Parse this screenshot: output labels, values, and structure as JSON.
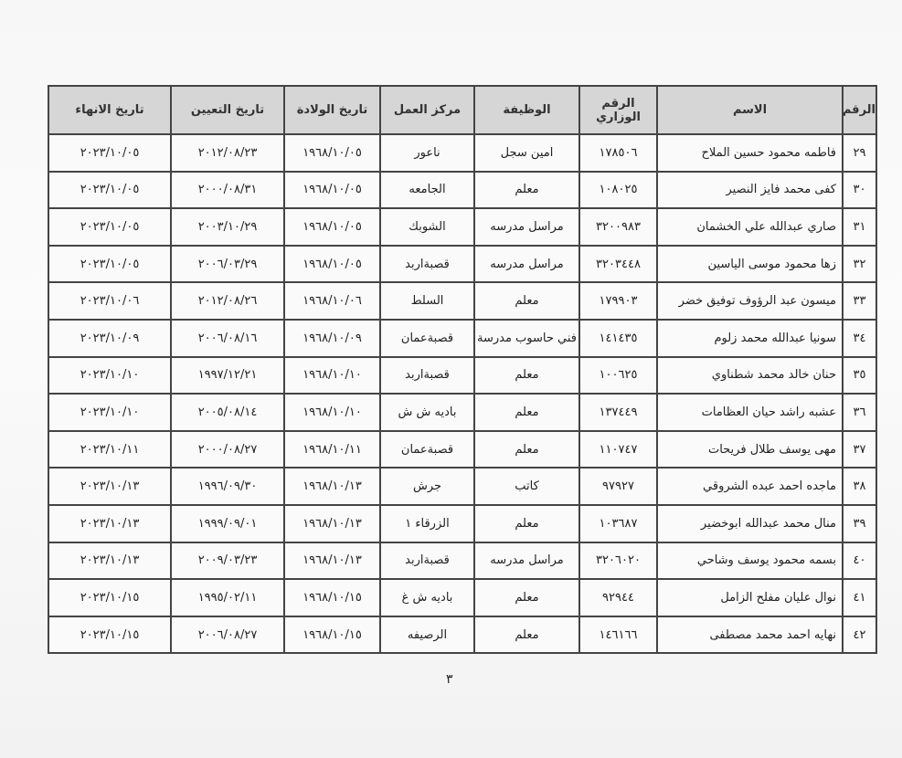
{
  "headers": {
    "num": "الرقم",
    "name": "الاسم",
    "ministry_no": "الرقم الوزاري",
    "job": "الوظيفة",
    "work_center": "مركز العمل",
    "birth_date": "تاريخ الولادة",
    "appointment_date": "تاريخ التعيين",
    "end_date": "تاريخ الانهاء"
  },
  "rows": [
    {
      "num": "٢٩",
      "name": "فاطمه محمود حسين الملاح",
      "ministry_no": "١٧٨٥٠٦",
      "job": "امين سجل",
      "work_center": "ناعور",
      "birth_date": "١٩٦٨/١٠/٠٥",
      "appointment_date": "٢٠١٢/٠٨/٢٣",
      "end_date": "٢٠٢٣/١٠/٠٥"
    },
    {
      "num": "٣٠",
      "name": "كفى محمد فايز النصير",
      "ministry_no": "١٠٨٠٢٥",
      "job": "معلم",
      "work_center": "الجامعه",
      "birth_date": "١٩٦٨/١٠/٠٥",
      "appointment_date": "٢٠٠٠/٠٨/٣١",
      "end_date": "٢٠٢٣/١٠/٠٥"
    },
    {
      "num": "٣١",
      "name": "صاري عبدالله علي الخشمان",
      "ministry_no": "٣٢٠٠٩٨٣",
      "job": "مراسل مدرسه",
      "work_center": "الشوبك",
      "birth_date": "١٩٦٨/١٠/٠٥",
      "appointment_date": "٢٠٠٣/١٠/٢٩",
      "end_date": "٢٠٢٣/١٠/٠٥"
    },
    {
      "num": "٣٢",
      "name": "زها محمود موسى الياسين",
      "ministry_no": "٣٢٠٣٤٤٨",
      "job": "مراسل مدرسه",
      "work_center": "قصبةاربد",
      "birth_date": "١٩٦٨/١٠/٠٥",
      "appointment_date": "٢٠٠٦/٠٣/٢٩",
      "end_date": "٢٠٢٣/١٠/٠٥"
    },
    {
      "num": "٣٣",
      "name": "ميسون عبد الرؤوف توفيق خضر",
      "ministry_no": "١٧٩٩٠٣",
      "job": "معلم",
      "work_center": "السلط",
      "birth_date": "١٩٦٨/١٠/٠٦",
      "appointment_date": "٢٠١٢/٠٨/٢٦",
      "end_date": "٢٠٢٣/١٠/٠٦"
    },
    {
      "num": "٣٤",
      "name": "سونيا عبدالله محمد زلوم",
      "ministry_no": "١٤١٤٣٥",
      "job": "فني حاسوب مدرسة",
      "work_center": "قصبةعمان",
      "birth_date": "١٩٦٨/١٠/٠٩",
      "appointment_date": "٢٠٠٦/٠٨/١٦",
      "end_date": "٢٠٢٣/١٠/٠٩"
    },
    {
      "num": "٣٥",
      "name": "حنان خالد محمد شطناوي",
      "ministry_no": "١٠٠٦٢٥",
      "job": "معلم",
      "work_center": "قصبةاربد",
      "birth_date": "١٩٦٨/١٠/١٠",
      "appointment_date": "١٩٩٧/١٢/٢١",
      "end_date": "٢٠٢٣/١٠/١٠"
    },
    {
      "num": "٣٦",
      "name": "عشبه راشد حيان العظامات",
      "ministry_no": "١٣٧٤٤٩",
      "job": "معلم",
      "work_center": "باديه ش ش",
      "birth_date": "١٩٦٨/١٠/١٠",
      "appointment_date": "٢٠٠٥/٠٨/١٤",
      "end_date": "٢٠٢٣/١٠/١٠"
    },
    {
      "num": "٣٧",
      "name": "مهى يوسف طلال فريحات",
      "ministry_no": "١١٠٧٤٧",
      "job": "معلم",
      "work_center": "قصبةعمان",
      "birth_date": "١٩٦٨/١٠/١١",
      "appointment_date": "٢٠٠٠/٠٨/٢٧",
      "end_date": "٢٠٢٣/١٠/١١"
    },
    {
      "num": "٣٨",
      "name": "ماجده احمد عبده الشروقي",
      "ministry_no": "٩٧٩٢٧",
      "job": "كاتب",
      "work_center": "جرش",
      "birth_date": "١٩٦٨/١٠/١٣",
      "appointment_date": "١٩٩٦/٠٩/٣٠",
      "end_date": "٢٠٢٣/١٠/١٣"
    },
    {
      "num": "٣٩",
      "name": "منال محمد عبدالله ابوخضير",
      "ministry_no": "١٠٣٦٨٧",
      "job": "معلم",
      "work_center": "الزرقاء ١",
      "birth_date": "١٩٦٨/١٠/١٣",
      "appointment_date": "١٩٩٩/٠٩/٠١",
      "end_date": "٢٠٢٣/١٠/١٣"
    },
    {
      "num": "٤٠",
      "name": "بسمه محمود يوسف وشاحي",
      "ministry_no": "٣٢٠٦٠٢٠",
      "job": "مراسل مدرسه",
      "work_center": "قصبةاربد",
      "birth_date": "١٩٦٨/١٠/١٣",
      "appointment_date": "٢٠٠٩/٠٣/٢٣",
      "end_date": "٢٠٢٣/١٠/١٣"
    },
    {
      "num": "٤١",
      "name": "نوال عليان مفلح الزامل",
      "ministry_no": "٩٢٩٤٤",
      "job": "معلم",
      "work_center": "باديه ش غ",
      "birth_date": "١٩٦٨/١٠/١٥",
      "appointment_date": "١٩٩٥/٠٢/١١",
      "end_date": "٢٠٢٣/١٠/١٥"
    },
    {
      "num": "٤٢",
      "name": "نهايه احمد محمد مصطفى",
      "ministry_no": "١٤٦١٦٦",
      "job": "معلم",
      "work_center": "الرصيفه",
      "birth_date": "١٩٦٨/١٠/١٥",
      "appointment_date": "٢٠٠٦/٠٨/٢٧",
      "end_date": "٢٠٢٣/١٠/١٥"
    }
  ],
  "page_number": "٣"
}
